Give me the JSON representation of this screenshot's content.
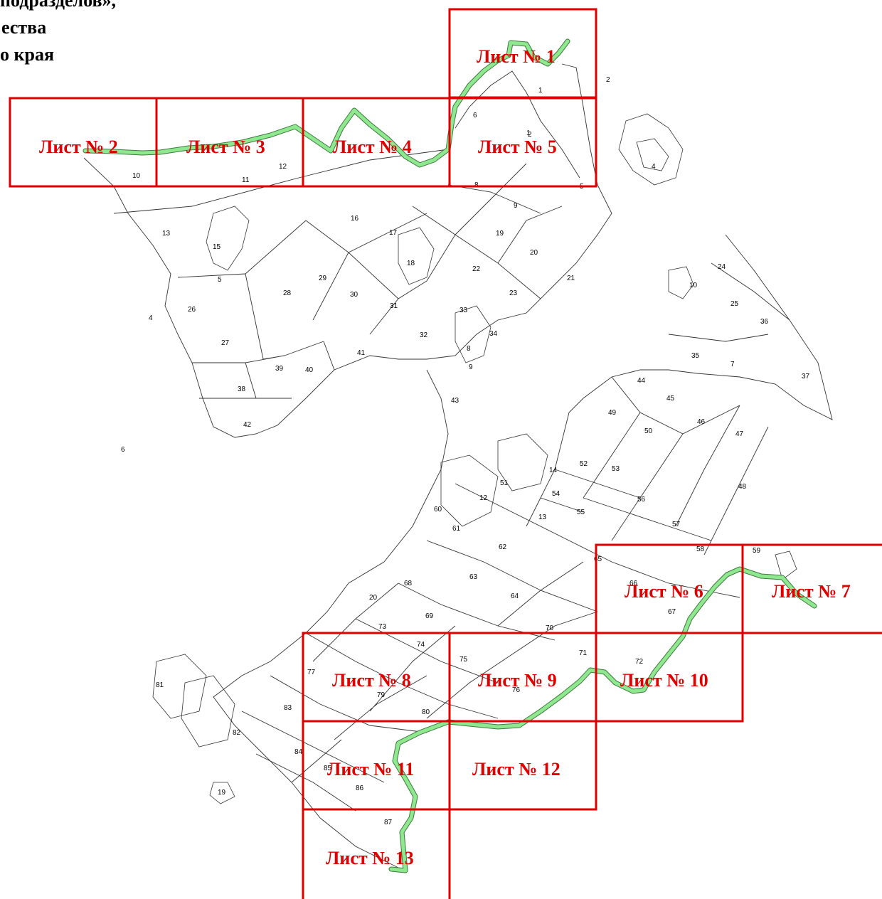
{
  "header": {
    "line1": "подразделов»,",
    "line2": "ества",
    "line3": "о края"
  },
  "sheets": [
    {
      "label": "Лист № 1"
    },
    {
      "label": "Лист № 2"
    },
    {
      "label": "Лист № 3"
    },
    {
      "label": "Лист № 4"
    },
    {
      "label": "Лист № 5"
    },
    {
      "label": "Лист № 6"
    },
    {
      "label": "Лист № 7"
    },
    {
      "label": "Лист № 8"
    },
    {
      "label": "Лист № 9"
    },
    {
      "label": "Лист № 10"
    },
    {
      "label": "Лист № 11"
    },
    {
      "label": "Лист № 12"
    },
    {
      "label": "Лист № 13"
    }
  ],
  "plot_numbers": [
    "1",
    "2",
    "1",
    "2",
    "4",
    "6",
    "8",
    "5",
    "9",
    "10",
    "11",
    "12",
    "13",
    "15",
    "16",
    "17",
    "18",
    "19",
    "20",
    "21",
    "22",
    "23",
    "24",
    "10",
    "25",
    "36",
    "26",
    "4",
    "5",
    "27",
    "28",
    "29",
    "30",
    "31",
    "32",
    "33",
    "34",
    "8",
    "9",
    "35",
    "7",
    "37",
    "38",
    "39",
    "40",
    "41",
    "42",
    "43",
    "44",
    "45",
    "46",
    "47",
    "48",
    "49",
    "50",
    "51",
    "52",
    "53",
    "54",
    "55",
    "56",
    "57",
    "58",
    "59",
    "60",
    "61",
    "62",
    "63",
    "64",
    "65",
    "66",
    "67",
    "68",
    "69",
    "70",
    "71",
    "72",
    "73",
    "74",
    "75",
    "76",
    "77",
    "79",
    "80",
    "81",
    "82",
    "83",
    "84",
    "85",
    "86",
    "87",
    "19",
    "6",
    "12",
    "13",
    "14",
    "20"
  ],
  "colors": {
    "sheet_frame": "#e00000",
    "route": "#8fe88f",
    "contour": "#333333"
  }
}
